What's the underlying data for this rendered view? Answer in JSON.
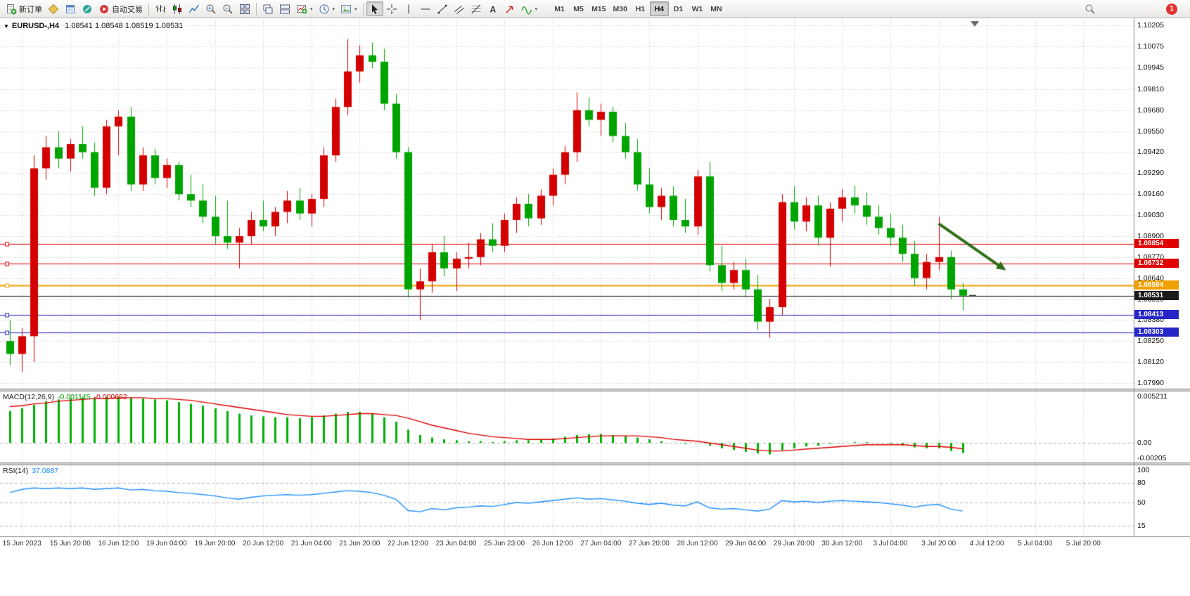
{
  "toolbar": {
    "new_order_label": "新订单",
    "autotrading_label": "自动交易",
    "timeframes": [
      "M1",
      "M5",
      "M15",
      "M30",
      "H1",
      "H4",
      "D1",
      "W1",
      "MN"
    ],
    "active_timeframe": "H4",
    "notification_count": "1"
  },
  "window": {
    "symbol": "EURUSD-,H4",
    "ohlc": "1.08541 1.08548 1.08519 1.08531"
  },
  "price_axis_labels": [
    "1.10205",
    "1.10075",
    "1.09945",
    "1.09810",
    "1.09680",
    "1.09550",
    "1.09420",
    "1.09290",
    "1.09160",
    "1.09030",
    "1.08900",
    "1.08770",
    "1.08640",
    "1.08510",
    "1.08380",
    "1.08250",
    "1.08120",
    "1.07990"
  ],
  "time_axis_labels": [
    "15 Jun 2023",
    "15 Jun 20:00",
    "16 Jun 12:00",
    "19 Jun 04:00",
    "19 Jun 20:00",
    "20 Jun 12:00",
    "21 Jun 04:00",
    "21 Jun 20:00",
    "22 Jun 12:00",
    "23 Jun 04:00",
    "25 Jun 23:00",
    "26 Jun 12:00",
    "27 Jun 04:00",
    "27 Jun 20:00",
    "28 Jun 12:00",
    "29 Jun 04:00",
    "29 Jun 20:00",
    "30 Jun 12:00",
    "3 Jul 04:00",
    "3 Jul 20:00",
    "4 Jul 12:00",
    "5 Jul 04:00",
    "5 Jul 20:00"
  ],
  "levels": [
    {
      "label": "1.08854",
      "price": 1.08854,
      "color": "#e00000",
      "width": 1
    },
    {
      "label": "1.08732",
      "price": 1.08732,
      "color": "#e00000",
      "width": 1
    },
    {
      "label": "1.08594",
      "price": 1.08594,
      "color": "#f0a000",
      "width": 2
    },
    {
      "label": "1.08531",
      "price": 1.08531,
      "color": "#1a1a1a",
      "width": 1,
      "current": true
    },
    {
      "label": "1.08413",
      "price": 1.08413,
      "color": "#2626c8",
      "width": 1
    },
    {
      "label": "1.08303",
      "price": 1.08303,
      "color": "#2626c8",
      "width": 1
    }
  ],
  "indicators": {
    "macd": {
      "name": "MACD(12,26,9)",
      "value": "-0.001145",
      "signal_value": "-0.000652",
      "axis": [
        "0.005211",
        "0.00",
        "-0.00205"
      ]
    },
    "rsi": {
      "name": "RSI(14)",
      "value": "37.0887",
      "axis": [
        "100",
        "80",
        "50",
        "15"
      ]
    }
  },
  "chart_data": {
    "type": "candlestick",
    "symbol": "EURUSD",
    "period": "H4",
    "title": "EURUSD-,H4",
    "up_color": "#d40000",
    "down_color": "#00a400",
    "ylim": [
      1.07955,
      1.10245
    ],
    "candles": [
      [
        1.0825,
        1.0838,
        1.081,
        1.0817
      ],
      [
        1.0817,
        1.0833,
        1.0806,
        1.0828
      ],
      [
        1.0828,
        1.094,
        1.0812,
        1.0932
      ],
      [
        1.0932,
        1.0952,
        1.0925,
        1.0945
      ],
      [
        1.0945,
        1.0955,
        1.0932,
        1.0938
      ],
      [
        1.0938,
        1.095,
        1.093,
        1.0947
      ],
      [
        1.0947,
        1.0958,
        1.0938,
        1.0942
      ],
      [
        1.0942,
        1.0948,
        1.0915,
        1.092
      ],
      [
        1.092,
        1.0962,
        1.0916,
        1.0958
      ],
      [
        1.0958,
        1.0968,
        1.094,
        1.0964
      ],
      [
        1.0964,
        1.097,
        1.0918,
        1.0922
      ],
      [
        1.0922,
        1.0945,
        1.0918,
        1.094
      ],
      [
        1.094,
        1.0944,
        1.0922,
        1.0926
      ],
      [
        1.0926,
        1.0938,
        1.092,
        1.0934
      ],
      [
        1.0934,
        1.0936,
        1.0912,
        1.0916
      ],
      [
        1.0916,
        1.0928,
        1.0908,
        1.0912
      ],
      [
        1.0912,
        1.0922,
        1.0898,
        1.0902
      ],
      [
        1.0902,
        1.0915,
        1.0885,
        1.089
      ],
      [
        1.089,
        1.0912,
        1.0882,
        1.0886
      ],
      [
        1.0886,
        1.0895,
        1.087,
        1.089
      ],
      [
        1.089,
        1.0905,
        1.0885,
        1.09
      ],
      [
        1.09,
        1.0912,
        1.0893,
        1.0896
      ],
      [
        1.0896,
        1.0908,
        1.089,
        1.0905
      ],
      [
        1.0905,
        1.0918,
        1.0898,
        1.0912
      ],
      [
        1.0912,
        1.092,
        1.09,
        1.0904
      ],
      [
        1.0904,
        1.0916,
        1.0896,
        1.0913
      ],
      [
        1.0913,
        1.0945,
        1.0908,
        1.094
      ],
      [
        1.094,
        1.0975,
        1.0936,
        1.097
      ],
      [
        1.097,
        1.1012,
        1.0965,
        1.0992
      ],
      [
        1.0992,
        1.1008,
        1.0985,
        1.1002
      ],
      [
        1.1002,
        1.101,
        1.0994,
        1.0998
      ],
      [
        1.0998,
        1.1006,
        1.0968,
        1.0972
      ],
      [
        1.0972,
        1.0978,
        1.0938,
        1.0942
      ],
      [
        1.0942,
        1.0945,
        1.0852,
        1.0857
      ],
      [
        1.0857,
        1.087,
        1.0838,
        1.0862
      ],
      [
        1.0862,
        1.0885,
        1.0855,
        1.088
      ],
      [
        1.088,
        1.089,
        1.0865,
        1.087
      ],
      [
        1.087,
        1.088,
        1.0856,
        1.0876
      ],
      [
        1.0876,
        1.0886,
        1.087,
        1.0877
      ],
      [
        1.0877,
        1.0892,
        1.0872,
        1.0888
      ],
      [
        1.0888,
        1.0898,
        1.088,
        1.0884
      ],
      [
        1.0884,
        1.0904,
        1.088,
        1.09
      ],
      [
        1.09,
        1.0914,
        1.0892,
        1.091
      ],
      [
        1.091,
        1.0916,
        1.0896,
        1.0901
      ],
      [
        1.0901,
        1.0919,
        1.0897,
        1.0915
      ],
      [
        1.0915,
        1.0932,
        1.0909,
        1.0928
      ],
      [
        1.0928,
        1.0946,
        1.0922,
        1.0942
      ],
      [
        1.0942,
        1.0979,
        1.0936,
        1.0968
      ],
      [
        1.0968,
        1.0976,
        1.0958,
        1.0962
      ],
      [
        1.0962,
        1.0972,
        1.0952,
        1.0967
      ],
      [
        1.0967,
        1.097,
        1.0948,
        1.0952
      ],
      [
        1.0952,
        1.096,
        1.0938,
        1.0942
      ],
      [
        1.0942,
        1.095,
        1.0918,
        1.0922
      ],
      [
        1.0922,
        1.0932,
        1.0904,
        1.0908
      ],
      [
        1.0908,
        1.092,
        1.09,
        1.0915
      ],
      [
        1.0915,
        1.0921,
        1.0896,
        1.09
      ],
      [
        1.09,
        1.0913,
        1.0892,
        1.0896
      ],
      [
        1.0896,
        1.0931,
        1.0891,
        1.0927
      ],
      [
        1.0927,
        1.0936,
        1.0868,
        1.0872
      ],
      [
        1.0872,
        1.0884,
        1.0856,
        1.0861
      ],
      [
        1.0861,
        1.0874,
        1.0857,
        1.0869
      ],
      [
        1.0869,
        1.0876,
        1.0852,
        1.0857
      ],
      [
        1.0857,
        1.0866,
        1.0832,
        1.0837
      ],
      [
        1.0837,
        1.0851,
        1.0827,
        1.0846
      ],
      [
        1.0846,
        1.0916,
        1.0841,
        1.0911
      ],
      [
        1.0911,
        1.0921,
        1.0894,
        1.0899
      ],
      [
        1.0899,
        1.0914,
        1.0893,
        1.0909
      ],
      [
        1.0909,
        1.0915,
        1.0884,
        1.0889
      ],
      [
        1.0889,
        1.0911,
        1.0871,
        1.0907
      ],
      [
        1.0907,
        1.0919,
        1.0899,
        1.0914
      ],
      [
        1.0914,
        1.0921,
        1.0904,
        1.0909
      ],
      [
        1.0909,
        1.0917,
        1.0897,
        1.0902
      ],
      [
        1.0902,
        1.0909,
        1.0891,
        1.0895
      ],
      [
        1.0895,
        1.0904,
        1.0884,
        1.0889
      ],
      [
        1.0889,
        1.0897,
        1.0874,
        1.0879
      ],
      [
        1.0879,
        1.0887,
        1.0859,
        1.0864
      ],
      [
        1.0864,
        1.0879,
        1.0857,
        1.0874
      ],
      [
        1.0874,
        1.0902,
        1.0869,
        1.0877
      ],
      [
        1.0877,
        1.0881,
        1.0851,
        1.0857
      ],
      [
        1.0857,
        1.0861,
        1.0844,
        1.08531
      ]
    ],
    "macd": {
      "ylim": [
        -0.0022,
        0.0058
      ],
      "hist": [
        0.0036,
        0.0039,
        0.0043,
        0.0047,
        0.0049,
        0.005,
        0.0051,
        0.0051,
        0.0052,
        0.0052,
        0.0051,
        0.005,
        0.0049,
        0.0048,
        0.0046,
        0.0044,
        0.0042,
        0.0039,
        0.0036,
        0.0033,
        0.0031,
        0.003,
        0.0029,
        0.0029,
        0.0028,
        0.0029,
        0.0031,
        0.0033,
        0.0035,
        0.0035,
        0.0033,
        0.0029,
        0.0024,
        0.0015,
        0.0009,
        0.0006,
        0.0004,
        0.0003,
        0.0002,
        0.0002,
        0.0001,
        0.0002,
        0.0003,
        0.0003,
        0.0004,
        0.0005,
        0.0007,
        0.0009,
        0.001,
        0.001,
        0.0009,
        0.0008,
        0.0006,
        0.0004,
        0.0002,
        0.0,
        -0.0001,
        0.0,
        -0.0003,
        -0.0006,
        -0.0008,
        -0.001,
        -0.0012,
        -0.0013,
        -0.0008,
        -0.0006,
        -0.0004,
        -0.0003,
        -0.0001,
        0.0,
        0.0001,
        0.0001,
        0.0,
        -0.0001,
        -0.0003,
        -0.0005,
        -0.0006,
        -0.0006,
        -0.0009,
        -0.001145
      ],
      "signal": [
        0.0041,
        0.0042,
        0.0044,
        0.0045,
        0.0047,
        0.0048,
        0.0049,
        0.005,
        0.005,
        0.0051,
        0.0051,
        0.0051,
        0.005,
        0.005,
        0.0049,
        0.0048,
        0.0046,
        0.0044,
        0.0042,
        0.004,
        0.0038,
        0.0036,
        0.0034,
        0.0032,
        0.0031,
        0.003,
        0.003,
        0.0031,
        0.0032,
        0.0033,
        0.0033,
        0.0032,
        0.0031,
        0.0028,
        0.0024,
        0.002,
        0.0017,
        0.0014,
        0.0011,
        0.0009,
        0.0007,
        0.0006,
        0.0005,
        0.0004,
        0.0004,
        0.0004,
        0.0005,
        0.0006,
        0.0007,
        0.0008,
        0.0008,
        0.0008,
        0.0008,
        0.0007,
        0.0006,
        0.0004,
        0.0003,
        0.0002,
        0.0,
        -0.0002,
        -0.0004,
        -0.0006,
        -0.0008,
        -0.0009,
        -0.0009,
        -0.0008,
        -0.0007,
        -0.0006,
        -0.0005,
        -0.0004,
        -0.0003,
        -0.0002,
        -0.0002,
        -0.0002,
        -0.0002,
        -0.0003,
        -0.0004,
        -0.0004,
        -0.0005,
        -0.000652
      ]
    },
    "rsi": {
      "levels": [
        80,
        50,
        15
      ],
      "values": [
        65,
        70,
        72,
        71,
        72,
        71,
        72,
        70,
        71,
        72,
        69,
        70,
        68,
        67,
        65,
        64,
        62,
        60,
        57,
        55,
        58,
        60,
        61,
        62,
        61,
        62,
        64,
        66,
        68,
        67,
        65,
        61,
        55,
        38,
        36,
        41,
        39,
        42,
        43,
        45,
        44,
        47,
        50,
        49,
        51,
        53,
        55,
        57,
        55,
        56,
        54,
        52,
        49,
        47,
        49,
        46,
        45,
        51,
        42,
        40,
        41,
        39,
        37,
        40,
        53,
        51,
        52,
        50,
        52,
        53,
        52,
        51,
        50,
        48,
        46,
        43,
        46,
        47,
        40,
        37.0887
      ]
    },
    "annotations": {
      "arrow": {
        "from_bar": 77.0,
        "from_price": 1.08978,
        "to_bar": 82.6,
        "to_price": 1.08687,
        "color": "#2e7016"
      }
    }
  }
}
